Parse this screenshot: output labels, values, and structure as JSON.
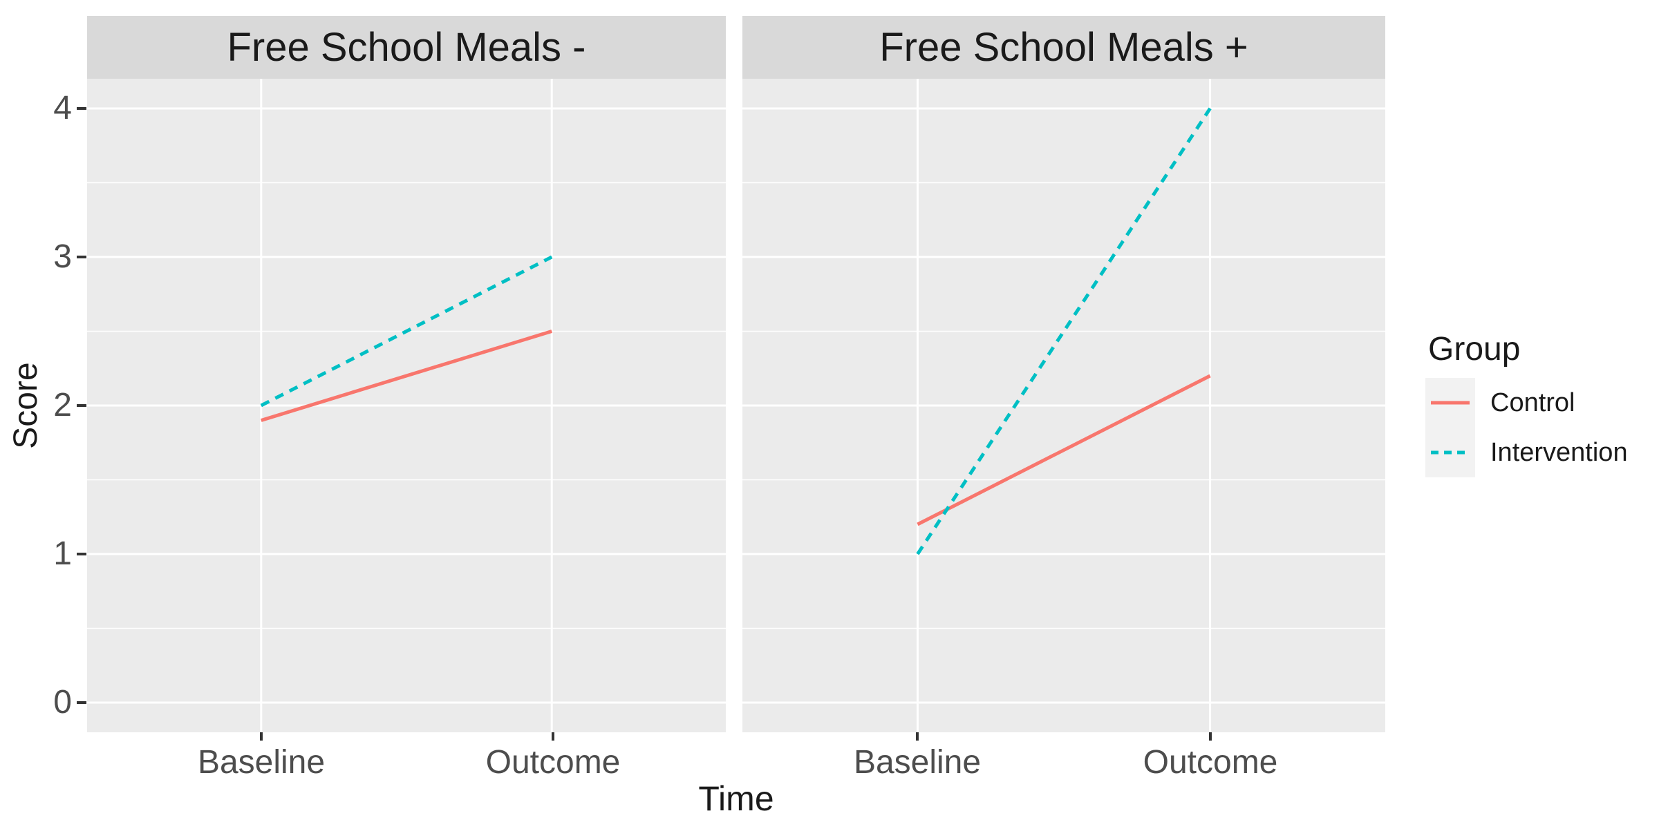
{
  "chart_data": {
    "type": "line",
    "categories": [
      "Baseline",
      "Outcome"
    ],
    "facets": [
      {
        "label": "Free School Meals -",
        "series": [
          {
            "name": "Control",
            "values": [
              1.9,
              2.5
            ]
          },
          {
            "name": "Intervention",
            "values": [
              2.0,
              3.0
            ]
          }
        ]
      },
      {
        "label": "Free School Meals +",
        "series": [
          {
            "name": "Control",
            "values": [
              1.2,
              2.2
            ]
          },
          {
            "name": "Intervention",
            "values": [
              1.0,
              4.0
            ]
          }
        ]
      }
    ],
    "xlabel": "Time",
    "ylabel": "Score",
    "ylim": [
      0,
      4
    ],
    "yticks": [
      0,
      1,
      2,
      3,
      4
    ],
    "grid": true,
    "legend": {
      "title": "Group",
      "position": "right",
      "entries": [
        {
          "label": "Control",
          "color": "#F8766D",
          "linetype": "solid"
        },
        {
          "label": "Intervention",
          "color": "#00BFC4",
          "linetype": "dashed"
        }
      ]
    },
    "styles": {
      "panel_bg": "#EBEBEB",
      "strip_bg": "#D9D9D9",
      "grid_color": "#FFFFFF",
      "key_bg": "#F2F2F2",
      "tick_text": "#4D4D4D",
      "text": "#1A1A1A"
    }
  }
}
